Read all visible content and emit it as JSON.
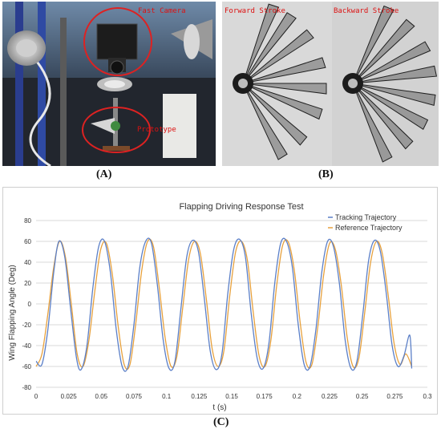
{
  "figure": {
    "label_a": "(A)",
    "label_b": "(B)",
    "label_c": "(C)"
  },
  "panel_a": {
    "annotation_camera": "Fast Camera",
    "annotation_prototype": "Prototype",
    "colors": {
      "annotation": "#dd2222"
    }
  },
  "panel_b": {
    "label_forward": "Forward Stroke",
    "label_backward": "Backward Stroke"
  },
  "chart_data": {
    "type": "line",
    "title": "Flapping Driving Response Test",
    "xlabel": "t (s)",
    "ylabel": "Wing Flapping Angle (Deg)",
    "xlim": [
      0,
      0.3
    ],
    "ylim": [
      -80,
      80
    ],
    "x_ticks": [
      "0",
      "0.025",
      "0.05",
      "0.075",
      "0.1",
      "0.125",
      "0.15",
      "0.175",
      "0.2",
      "0.225",
      "0.25",
      "0.275",
      "0.3"
    ],
    "y_ticks": [
      "80",
      "60",
      "40",
      "20",
      "0",
      "-20",
      "-40",
      "-60",
      "-80"
    ],
    "grid": "horizontal",
    "legend": "top-right",
    "series": [
      {
        "name": "Tracking Trajectory",
        "color": "#5b7fc7",
        "x": [
          0,
          0.0045,
          0.009,
          0.0135,
          0.0175,
          0.022,
          0.0265,
          0.031,
          0.0345,
          0.039,
          0.0435,
          0.048,
          0.0525,
          0.057,
          0.0615,
          0.066,
          0.0705,
          0.075,
          0.0795,
          0.084,
          0.0885,
          0.093,
          0.0975,
          0.102,
          0.1065,
          0.111,
          0.1155,
          0.12,
          0.1245,
          0.129,
          0.1335,
          0.138,
          0.1425,
          0.147,
          0.1515,
          0.156,
          0.1605,
          0.165,
          0.1695,
          0.174,
          0.1785,
          0.183,
          0.1875,
          0.192,
          0.1965,
          0.201,
          0.2055,
          0.21,
          0.2145,
          0.219,
          0.2235,
          0.228,
          0.2325,
          0.237,
          0.2415,
          0.246,
          0.2505,
          0.255,
          0.2595,
          0.264,
          0.2685,
          0.273,
          0.2775,
          0.282,
          0.2865,
          0.288
        ],
        "y": [
          -55,
          -58,
          -25,
          30,
          60,
          45,
          -5,
          -52,
          -63,
          -40,
          15,
          55,
          60,
          30,
          -25,
          -60,
          -60,
          -20,
          35,
          60,
          58,
          18,
          -35,
          -62,
          -55,
          -5,
          45,
          61,
          50,
          5,
          -45,
          -63,
          -48,
          10,
          52,
          62,
          45,
          -10,
          -52,
          -62,
          -38,
          20,
          58,
          60,
          35,
          -20,
          -58,
          -60,
          -25,
          30,
          60,
          55,
          20,
          -35,
          -62,
          -55,
          -10,
          42,
          61,
          50,
          10,
          -40,
          -60,
          -50,
          -30,
          -62
        ]
      },
      {
        "name": "Reference Trajectory",
        "color": "#e7a13d",
        "x": [
          0,
          0.0045,
          0.009,
          0.0135,
          0.018,
          0.0225,
          0.027,
          0.0315,
          0.036,
          0.0405,
          0.045,
          0.0495,
          0.054,
          0.0585,
          0.063,
          0.0675,
          0.072,
          0.0765,
          0.081,
          0.0855,
          0.09,
          0.0945,
          0.099,
          0.1035,
          0.108,
          0.1125,
          0.117,
          0.1215,
          0.126,
          0.1305,
          0.135,
          0.1395,
          0.144,
          0.1485,
          0.153,
          0.1575,
          0.162,
          0.1665,
          0.171,
          0.1755,
          0.18,
          0.1845,
          0.189,
          0.1935,
          0.198,
          0.2025,
          0.207,
          0.2115,
          0.216,
          0.2205,
          0.225,
          0.2295,
          0.234,
          0.2385,
          0.243,
          0.2475,
          0.252,
          0.2565,
          0.261,
          0.2655,
          0.27,
          0.2745,
          0.279,
          0.2835,
          0.288
        ],
        "y": [
          -60,
          -48,
          -10,
          35,
          60,
          45,
          0,
          -48,
          -60,
          -35,
          12,
          52,
          58,
          28,
          -22,
          -58,
          -58,
          -18,
          32,
          60,
          55,
          15,
          -33,
          -60,
          -50,
          -3,
          43,
          60,
          48,
          5,
          -43,
          -60,
          -45,
          8,
          50,
          60,
          42,
          -8,
          -50,
          -60,
          -35,
          18,
          56,
          59,
          32,
          -18,
          -56,
          -58,
          -22,
          28,
          58,
          52,
          18,
          -32,
          -60,
          -52,
          -8,
          40,
          60,
          48,
          8,
          -38,
          -58,
          -48,
          -60
        ]
      }
    ]
  }
}
